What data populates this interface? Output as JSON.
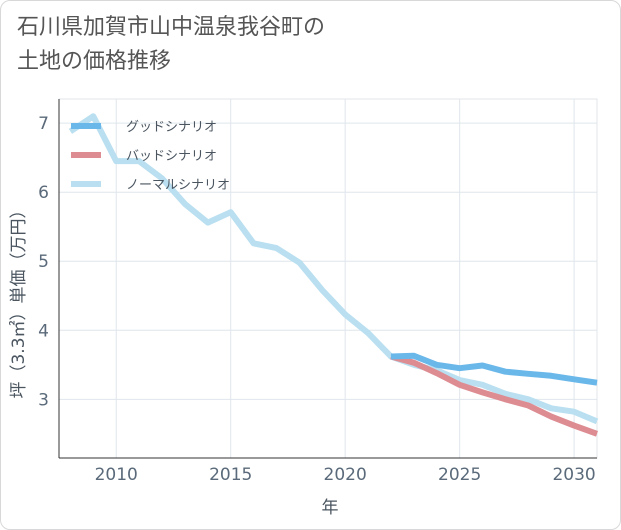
{
  "title_line1": "石川県加賀市山中温泉我谷町の",
  "title_line2": "土地の価格推移",
  "chart_data": {
    "type": "line",
    "xlabel": "年",
    "ylabel": "坪（3.3㎡）単価（万円）",
    "xlim": [
      2007.5,
      2031
    ],
    "ylim": [
      2.15,
      7.35
    ],
    "xticks": [
      2010,
      2015,
      2020,
      2025,
      2030
    ],
    "yticks": [
      3,
      4,
      5,
      6,
      7
    ],
    "grid": true,
    "legend_position": "top-left",
    "series": [
      {
        "name": "グッドシナリオ",
        "color": "#6ab7ea",
        "x": [
          2022,
          2023,
          2024,
          2025,
          2026,
          2027,
          2028,
          2029,
          2030,
          2031
        ],
        "y": [
          3.62,
          3.63,
          3.5,
          3.45,
          3.49,
          3.4,
          3.37,
          3.34,
          3.29,
          3.24
        ]
      },
      {
        "name": "バッドシナリオ",
        "color": "#dd8c92",
        "x": [
          2022,
          2023,
          2024,
          2025,
          2026,
          2027,
          2028,
          2029,
          2030,
          2031
        ],
        "y": [
          3.62,
          3.53,
          3.38,
          3.21,
          3.1,
          3.0,
          2.91,
          2.75,
          2.62,
          2.5
        ]
      },
      {
        "name": "ノーマルシナリオ",
        "color": "#b9dff0",
        "x": [
          2008,
          2009,
          2010,
          2011,
          2012,
          2013,
          2014,
          2015,
          2016,
          2017,
          2018,
          2019,
          2020,
          2021,
          2022,
          2023,
          2024,
          2025,
          2026,
          2027,
          2028,
          2029,
          2030,
          2031
        ],
        "y": [
          6.88,
          7.1,
          6.45,
          6.45,
          6.2,
          5.83,
          5.56,
          5.71,
          5.26,
          5.19,
          4.98,
          4.58,
          4.23,
          3.96,
          3.62,
          3.5,
          3.42,
          3.28,
          3.21,
          3.08,
          3.0,
          2.87,
          2.82,
          2.68
        ]
      }
    ]
  }
}
